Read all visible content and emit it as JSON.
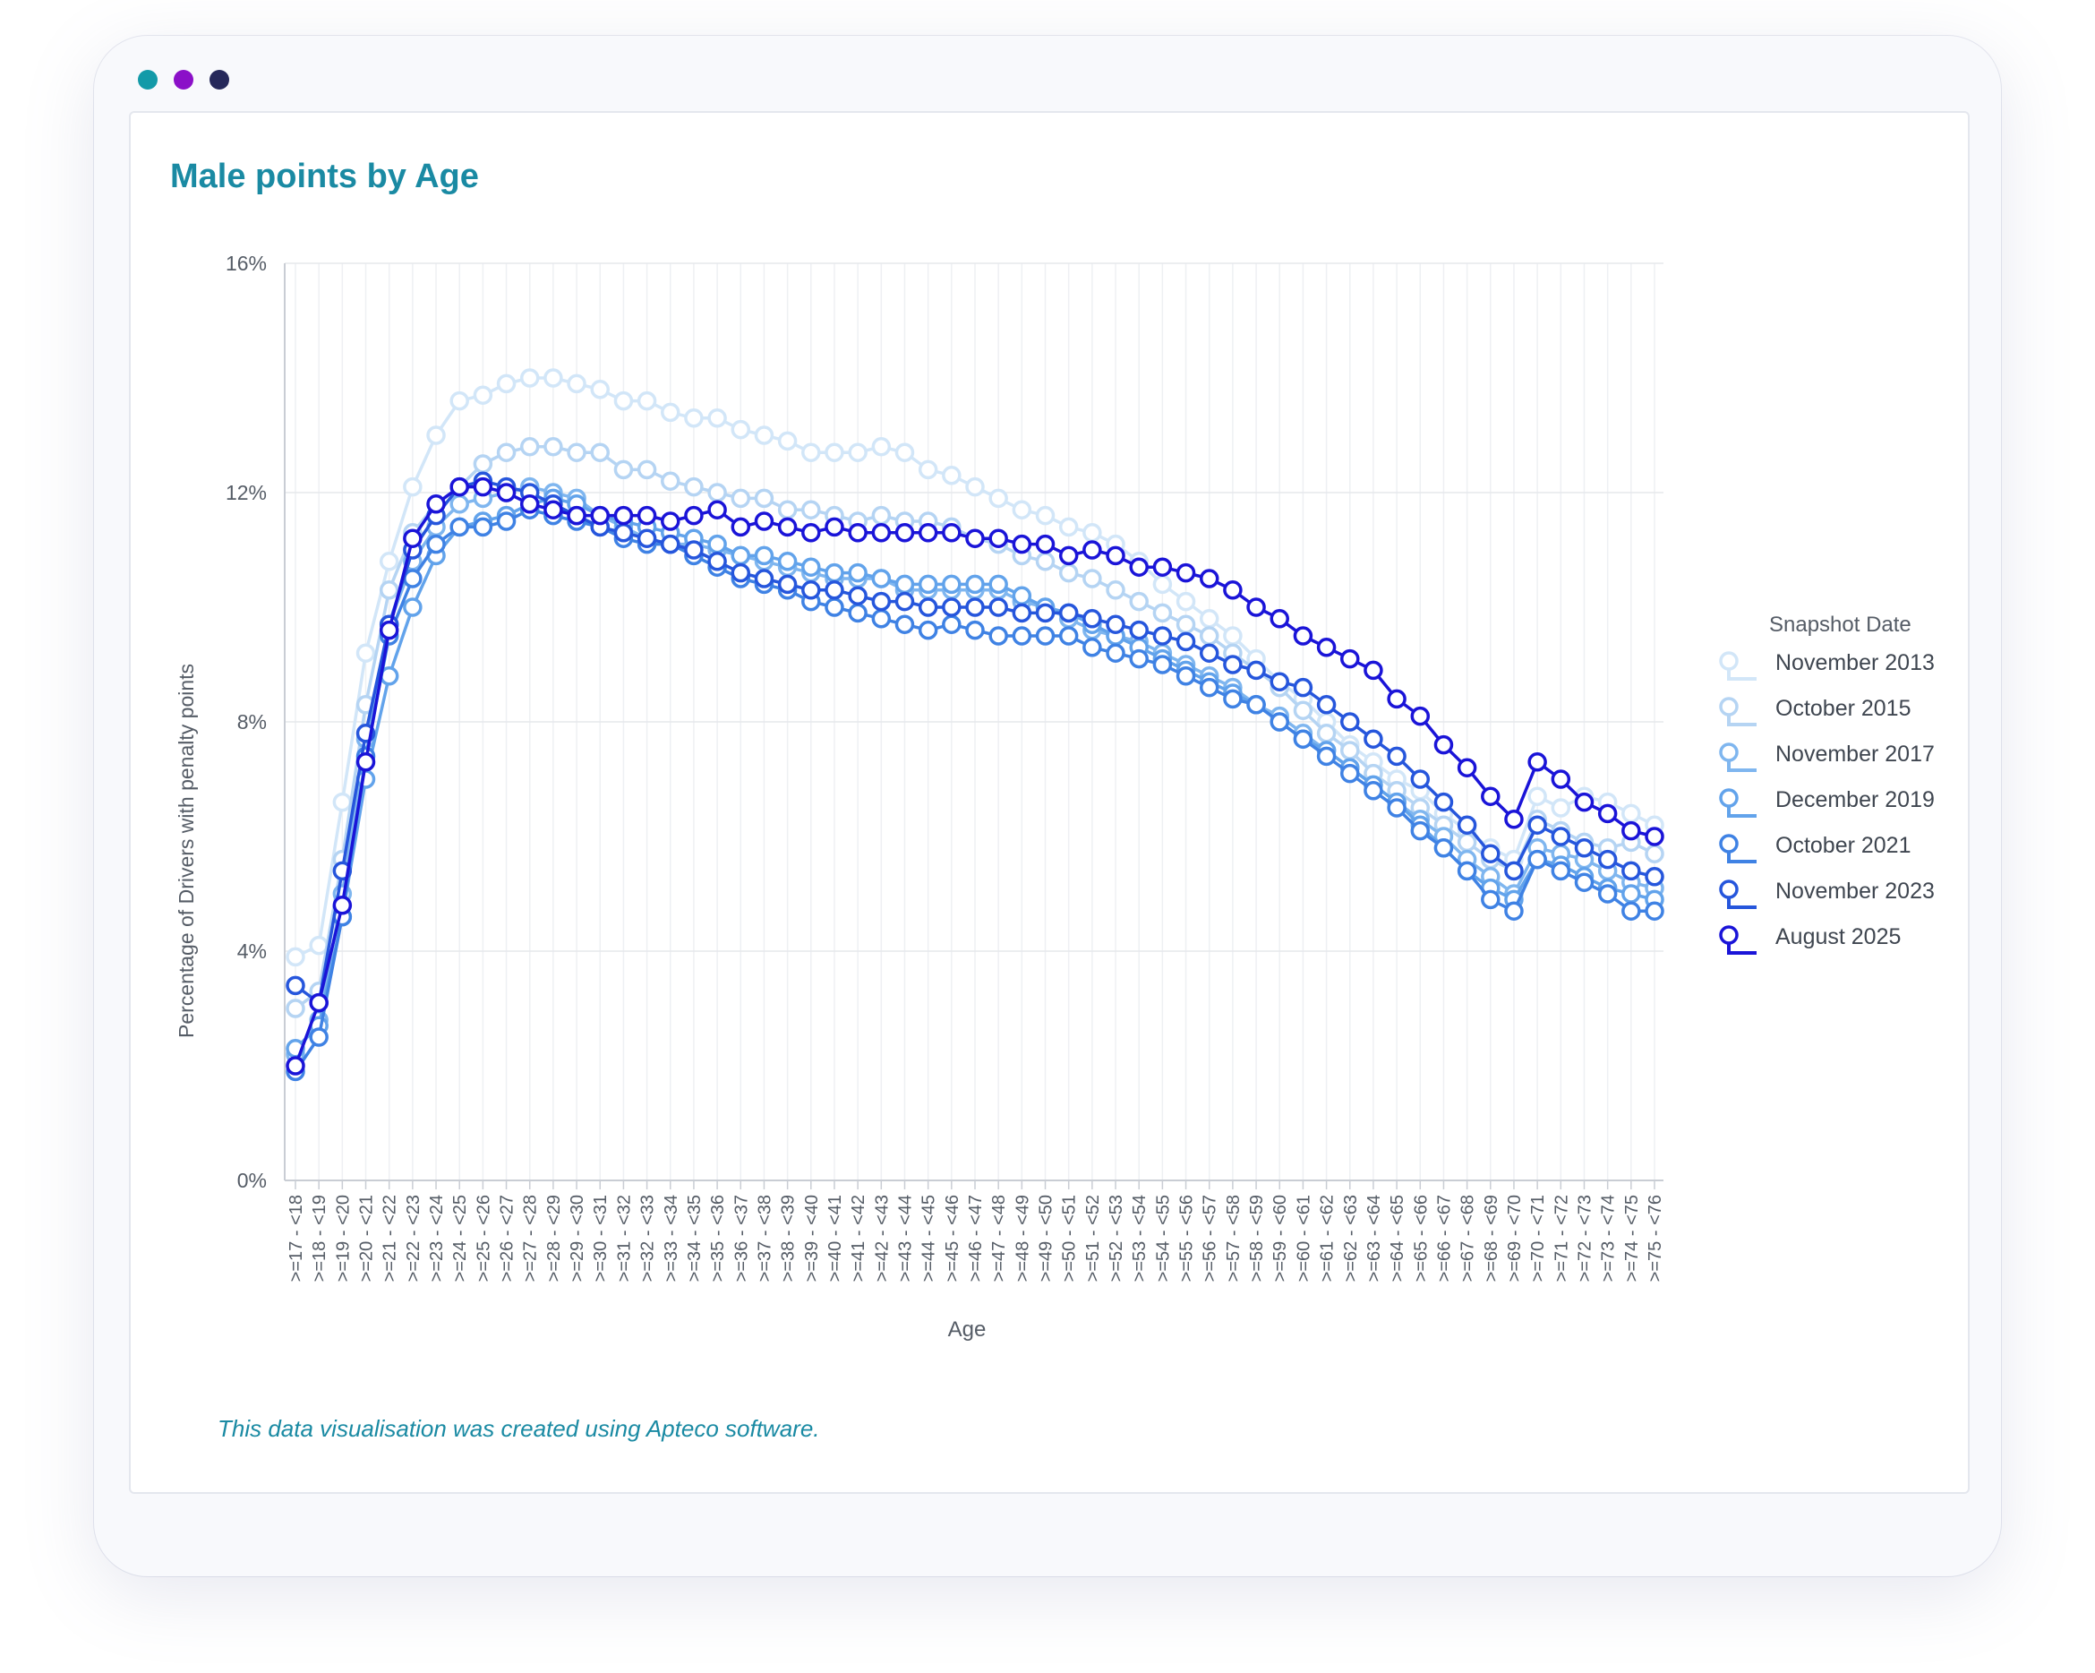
{
  "window": {
    "dots": [
      {
        "name": "teal",
        "color": "#139aa8"
      },
      {
        "name": "purple",
        "color": "#8b10c8"
      },
      {
        "name": "navy",
        "color": "#25285a"
      }
    ]
  },
  "footnote": "This data visualisation was created using Apteco software.",
  "chart_data": {
    "type": "line",
    "title": "Male points by Age",
    "xlabel": "Age",
    "ylabel": "Percentage of Drivers with penalty points",
    "ylim": [
      0,
      16
    ],
    "yticks": [
      0,
      4,
      8,
      12,
      16
    ],
    "ytick_labels": [
      "0%",
      "4%",
      "8%",
      "12%",
      "16%"
    ],
    "grid": true,
    "legend": {
      "title": "Snapshot Date",
      "position": "right"
    },
    "categories": [
      ">=17 - <18",
      ">=18 - <19",
      ">=19 - <20",
      ">=20 - <21",
      ">=21 - <22",
      ">=22 - <23",
      ">=23 - <24",
      ">=24 - <25",
      ">=25 - <26",
      ">=26 - <27",
      ">=27 - <28",
      ">=28 - <29",
      ">=29 - <30",
      ">=30 - <31",
      ">=31 - <32",
      ">=32 - <33",
      ">=33 - <34",
      ">=34 - <35",
      ">=35 - <36",
      ">=36 - <37",
      ">=37 - <38",
      ">=38 - <39",
      ">=39 - <40",
      ">=40 - <41",
      ">=41 - <42",
      ">=42 - <43",
      ">=43 - <44",
      ">=44 - <45",
      ">=45 - <46",
      ">=46 - <47",
      ">=47 - <48",
      ">=48 - <49",
      ">=49 - <50",
      ">=50 - <51",
      ">=51 - <52",
      ">=52 - <53",
      ">=53 - <54",
      ">=54 - <55",
      ">=55 - <56",
      ">=56 - <57",
      ">=57 - <58",
      ">=58 - <59",
      ">=59 - <60",
      ">=60 - <61",
      ">=61 - <62",
      ">=62 - <63",
      ">=63 - <64",
      ">=64 - <65",
      ">=65 - <66",
      ">=66 - <67",
      ">=67 - <68",
      ">=68 - <69",
      ">=69 - <70",
      ">=70 - <71",
      ">=71 - <72",
      ">=72 - <73",
      ">=73 - <74",
      ">=74 - <75",
      ">=75 - <76"
    ],
    "series": [
      {
        "name": "November 2013",
        "color": "#d2e6f8",
        "values": [
          3.9,
          4.1,
          6.6,
          9.2,
          10.8,
          12.1,
          13.0,
          13.6,
          13.7,
          13.9,
          14.0,
          14.0,
          13.9,
          13.8,
          13.6,
          13.6,
          13.4,
          13.3,
          13.3,
          13.1,
          13.0,
          12.9,
          12.7,
          12.7,
          12.7,
          12.8,
          12.7,
          12.4,
          12.3,
          12.1,
          11.9,
          11.7,
          11.6,
          11.4,
          11.3,
          11.1,
          10.8,
          10.4,
          10.1,
          9.8,
          9.5,
          9.1,
          8.7,
          8.4,
          8.0,
          7.6,
          7.3,
          7.0,
          6.8,
          6.4,
          6.1,
          5.8,
          5.6,
          6.7,
          6.5,
          6.7,
          6.6,
          6.4,
          6.2
        ]
      },
      {
        "name": "October 2015",
        "color": "#b5d4f3",
        "values": [
          3.0,
          3.3,
          5.6,
          8.3,
          10.3,
          11.3,
          11.8,
          12.1,
          12.5,
          12.7,
          12.8,
          12.8,
          12.7,
          12.7,
          12.4,
          12.4,
          12.2,
          12.1,
          12.0,
          11.9,
          11.9,
          11.7,
          11.7,
          11.6,
          11.5,
          11.6,
          11.5,
          11.5,
          11.4,
          11.2,
          11.1,
          10.9,
          10.8,
          10.6,
          10.5,
          10.3,
          10.1,
          9.9,
          9.7,
          9.5,
          9.2,
          8.9,
          8.6,
          8.2,
          7.8,
          7.5,
          7.1,
          6.8,
          6.5,
          6.2,
          5.9,
          5.6,
          5.4,
          6.3,
          6.1,
          5.9,
          5.8,
          5.9,
          5.7
        ]
      },
      {
        "name": "November 2017",
        "color": "#7fb6ef",
        "values": [
          2.2,
          2.8,
          5.0,
          7.7,
          9.7,
          10.8,
          11.4,
          11.8,
          11.9,
          12.0,
          12.1,
          12.0,
          11.9,
          11.6,
          11.4,
          11.2,
          11.1,
          11.1,
          11.0,
          10.9,
          10.8,
          10.7,
          10.6,
          10.5,
          10.5,
          10.5,
          10.3,
          10.3,
          10.3,
          10.3,
          10.3,
          10.1,
          10.0,
          9.8,
          9.6,
          9.5,
          9.4,
          9.2,
          9.0,
          8.8,
          8.6,
          8.3,
          8.1,
          7.8,
          7.5,
          7.2,
          6.9,
          6.6,
          6.3,
          6.0,
          5.6,
          5.3,
          5.0,
          5.8,
          5.7,
          5.6,
          5.4,
          5.2,
          5.1
        ]
      },
      {
        "name": "December 2019",
        "color": "#62a3eb",
        "values": [
          2.3,
          2.7,
          4.6,
          7.0,
          8.8,
          10.0,
          10.9,
          11.4,
          11.5,
          11.6,
          11.8,
          11.9,
          11.8,
          11.6,
          11.5,
          11.4,
          11.3,
          11.2,
          11.1,
          10.9,
          10.9,
          10.8,
          10.7,
          10.6,
          10.6,
          10.5,
          10.4,
          10.4,
          10.4,
          10.4,
          10.4,
          10.2,
          10.0,
          9.9,
          9.7,
          9.5,
          9.3,
          9.1,
          8.9,
          8.7,
          8.5,
          8.3,
          8.0,
          7.7,
          7.5,
          7.2,
          6.9,
          6.6,
          6.2,
          5.8,
          5.4,
          5.1,
          4.9,
          5.6,
          5.5,
          5.3,
          5.1,
          5.0,
          4.9
        ]
      },
      {
        "name": "October 2021",
        "color": "#3f82e4",
        "values": [
          1.9,
          2.5,
          4.6,
          7.4,
          9.5,
          10.5,
          11.1,
          11.4,
          11.4,
          11.5,
          11.7,
          11.6,
          11.5,
          11.4,
          11.2,
          11.1,
          11.1,
          10.9,
          10.7,
          10.5,
          10.4,
          10.3,
          10.1,
          10.0,
          9.9,
          9.8,
          9.7,
          9.6,
          9.7,
          9.6,
          9.5,
          9.5,
          9.5,
          9.5,
          9.3,
          9.2,
          9.1,
          9.0,
          8.8,
          8.6,
          8.4,
          8.3,
          8.0,
          7.7,
          7.4,
          7.1,
          6.8,
          6.5,
          6.1,
          5.8,
          5.4,
          4.9,
          4.7,
          5.6,
          5.4,
          5.2,
          5.0,
          4.7,
          4.7
        ]
      },
      {
        "name": "November 2023",
        "color": "#2656dc",
        "values": [
          3.4,
          3.1,
          5.4,
          7.8,
          9.7,
          11.0,
          11.6,
          12.1,
          12.2,
          12.1,
          12.0,
          11.8,
          11.6,
          11.4,
          11.3,
          11.2,
          11.1,
          11.0,
          10.8,
          10.6,
          10.5,
          10.4,
          10.3,
          10.3,
          10.2,
          10.1,
          10.1,
          10.0,
          10.0,
          10.0,
          10.0,
          9.9,
          9.9,
          9.9,
          9.8,
          9.7,
          9.6,
          9.5,
          9.4,
          9.2,
          9.0,
          8.9,
          8.7,
          8.6,
          8.3,
          8.0,
          7.7,
          7.4,
          7.0,
          6.6,
          6.2,
          5.7,
          5.4,
          6.2,
          6.0,
          5.8,
          5.6,
          5.4,
          5.3
        ]
      },
      {
        "name": "August 2025",
        "color": "#1a14d8",
        "values": [
          2.0,
          3.1,
          4.8,
          7.3,
          9.6,
          11.2,
          11.8,
          12.1,
          12.1,
          12.0,
          11.8,
          11.7,
          11.6,
          11.6,
          11.6,
          11.6,
          11.5,
          11.6,
          11.7,
          11.4,
          11.5,
          11.4,
          11.3,
          11.4,
          11.3,
          11.3,
          11.3,
          11.3,
          11.3,
          11.2,
          11.2,
          11.1,
          11.1,
          10.9,
          11.0,
          10.9,
          10.7,
          10.7,
          10.6,
          10.5,
          10.3,
          10.0,
          9.8,
          9.5,
          9.3,
          9.1,
          8.9,
          8.4,
          8.1,
          7.6,
          7.2,
          6.7,
          6.3,
          7.3,
          7.0,
          6.6,
          6.4,
          6.1,
          6.0
        ]
      }
    ]
  }
}
